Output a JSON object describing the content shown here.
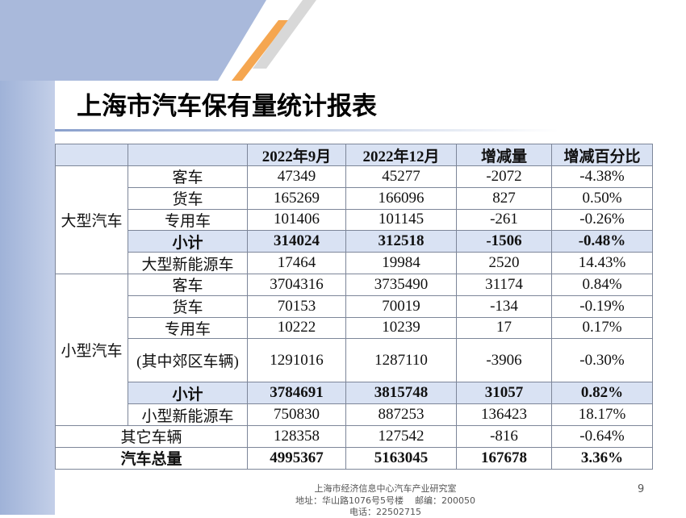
{
  "title": "上海市汽车保有量统计报表",
  "table": {
    "header": [
      "2022年9月",
      "2022年12月",
      "增减量",
      "增减百分比"
    ],
    "groups": [
      {
        "name": "大型汽车",
        "rows": [
          {
            "label": "客车",
            "cells": [
              "47349",
              "45277",
              "-2072",
              "-4.38%"
            ]
          },
          {
            "label": "货车",
            "cells": [
              "165269",
              "166096",
              "827",
              "0.50%"
            ]
          },
          {
            "label": "专用车",
            "cells": [
              "101406",
              "101145",
              "-261",
              "-0.26%"
            ]
          },
          {
            "label": "小计",
            "cells": [
              "314024",
              "312518",
              "-1506",
              "-0.48%"
            ]
          },
          {
            "label": "大型新能源车",
            "cells": [
              "17464",
              "19984",
              "2520",
              "14.43%"
            ]
          }
        ]
      },
      {
        "name": "小型汽车",
        "rows": [
          {
            "label": "客车",
            "cells": [
              "3704316",
              "3735490",
              "31174",
              "0.84%"
            ]
          },
          {
            "label": "货车",
            "cells": [
              "70153",
              "70019",
              "-134",
              "-0.19%"
            ]
          },
          {
            "label": "专用车",
            "cells": [
              "10222",
              "10239",
              "17",
              "0.17%"
            ]
          },
          {
            "label": "(其中郊区车辆)",
            "cells": [
              "1291016",
              "1287110",
              "-3906",
              "-0.30%"
            ]
          },
          {
            "label": "小计",
            "cells": [
              "3784691",
              "3815748",
              "31057",
              "0.82%"
            ]
          },
          {
            "label": "小型新能源车",
            "cells": [
              "750830",
              "887253",
              "136423",
              "18.17%"
            ]
          }
        ]
      }
    ],
    "totals": [
      {
        "label": "其它车辆",
        "cells": [
          "128358",
          "127542",
          "-816",
          "-0.64%"
        ]
      },
      {
        "label": "汽车总量",
        "cells": [
          "4995367",
          "5163045",
          "167678",
          "3.36%"
        ]
      }
    ]
  },
  "footer": {
    "lines": [
      "上海市经济信息中心汽车产业研究室",
      "地址：华山路1076号5号楼    邮编：200050",
      "电话：22502715"
    ],
    "page": "9"
  }
}
